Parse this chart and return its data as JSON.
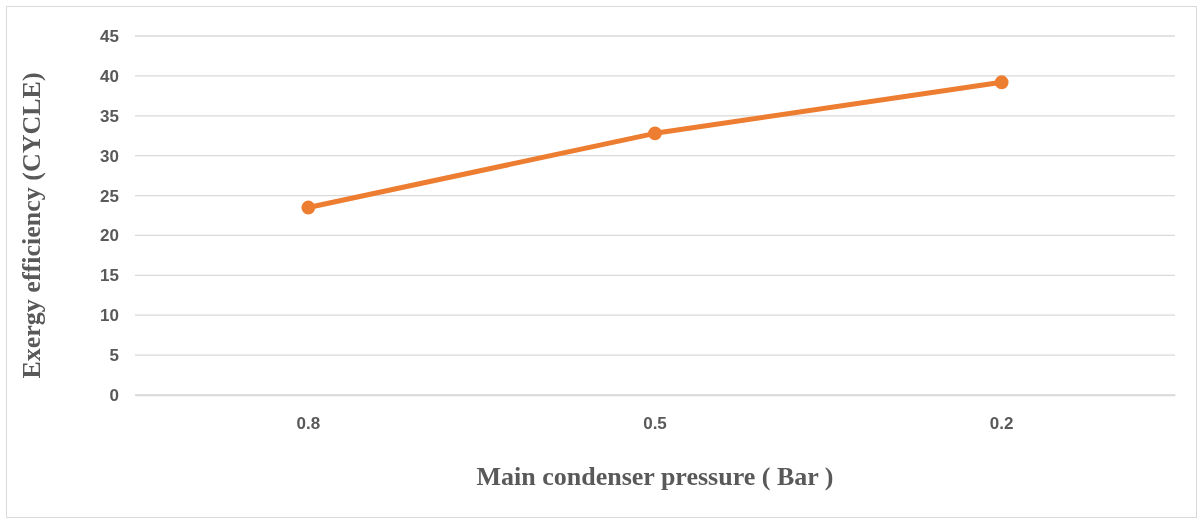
{
  "chart_data": {
    "type": "line",
    "xlabel": "Main condenser pressure ( Bar )",
    "ylabel": "Exergy efficiency (CYCLE)",
    "categories": [
      "0.8",
      "0.5",
      "0.2"
    ],
    "series": [
      {
        "color": "#ed7d31",
        "values": [
          23.5,
          32.8,
          39.2
        ]
      }
    ],
    "ylim": [
      0,
      45
    ],
    "yticks": [
      0,
      5,
      10,
      15,
      20,
      25,
      30,
      35,
      40,
      45
    ],
    "grid": "y",
    "marker": "circle",
    "line_style": "solid"
  }
}
